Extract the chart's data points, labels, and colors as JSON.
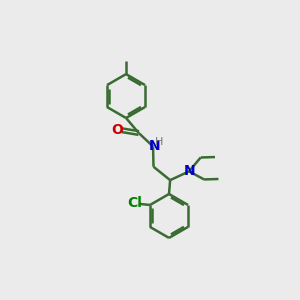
{
  "bg_color": "#ebebeb",
  "bond_color": "#3a6b32",
  "bond_width": 1.8,
  "o_color": "#cc0000",
  "n_color": "#0000cc",
  "cl_color": "#008000",
  "figsize": [
    3.0,
    3.0
  ],
  "dpi": 100,
  "xlim": [
    0,
    10
  ],
  "ylim": [
    0,
    10
  ]
}
